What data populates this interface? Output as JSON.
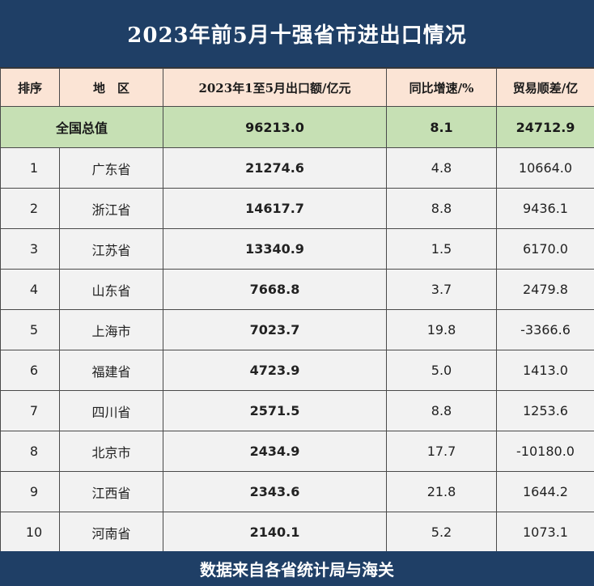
{
  "title": "2023年前5月十强省市进出口情况",
  "headers": {
    "rank": "排序",
    "region": "地　区",
    "export": "2023年1至5月出口额/亿元",
    "growth": "同比增速/%",
    "surplus": "贸易顺差/亿"
  },
  "total": {
    "label": "全国总值",
    "export": "96213.0",
    "growth": "8.1",
    "surplus": "24712.9"
  },
  "rows": [
    {
      "rank": "1",
      "region": "广东省",
      "export": "21274.6",
      "growth": "4.8",
      "surplus": "10664.0"
    },
    {
      "rank": "2",
      "region": "浙江省",
      "export": "14617.7",
      "growth": "8.8",
      "surplus": "9436.1"
    },
    {
      "rank": "3",
      "region": "江苏省",
      "export": "13340.9",
      "growth": "1.5",
      "surplus": "6170.0"
    },
    {
      "rank": "4",
      "region": "山东省",
      "export": "7668.8",
      "growth": "3.7",
      "surplus": "2479.8"
    },
    {
      "rank": "5",
      "region": "上海市",
      "export": "7023.7",
      "growth": "19.8",
      "surplus": "-3366.6"
    },
    {
      "rank": "6",
      "region": "福建省",
      "export": "4723.9",
      "growth": "5.0",
      "surplus": "1413.0"
    },
    {
      "rank": "7",
      "region": "四川省",
      "export": "2571.5",
      "growth": "8.8",
      "surplus": "1253.6"
    },
    {
      "rank": "8",
      "region": "北京市",
      "export": "2434.9",
      "growth": "17.7",
      "surplus": "-10180.0"
    },
    {
      "rank": "9",
      "region": "江西省",
      "export": "2343.6",
      "growth": "21.8",
      "surplus": "1644.2"
    },
    {
      "rank": "10",
      "region": "河南省",
      "export": "2140.1",
      "growth": "5.2",
      "surplus": "1073.1"
    }
  ],
  "footer": "数据来自各省统计局与海关"
}
